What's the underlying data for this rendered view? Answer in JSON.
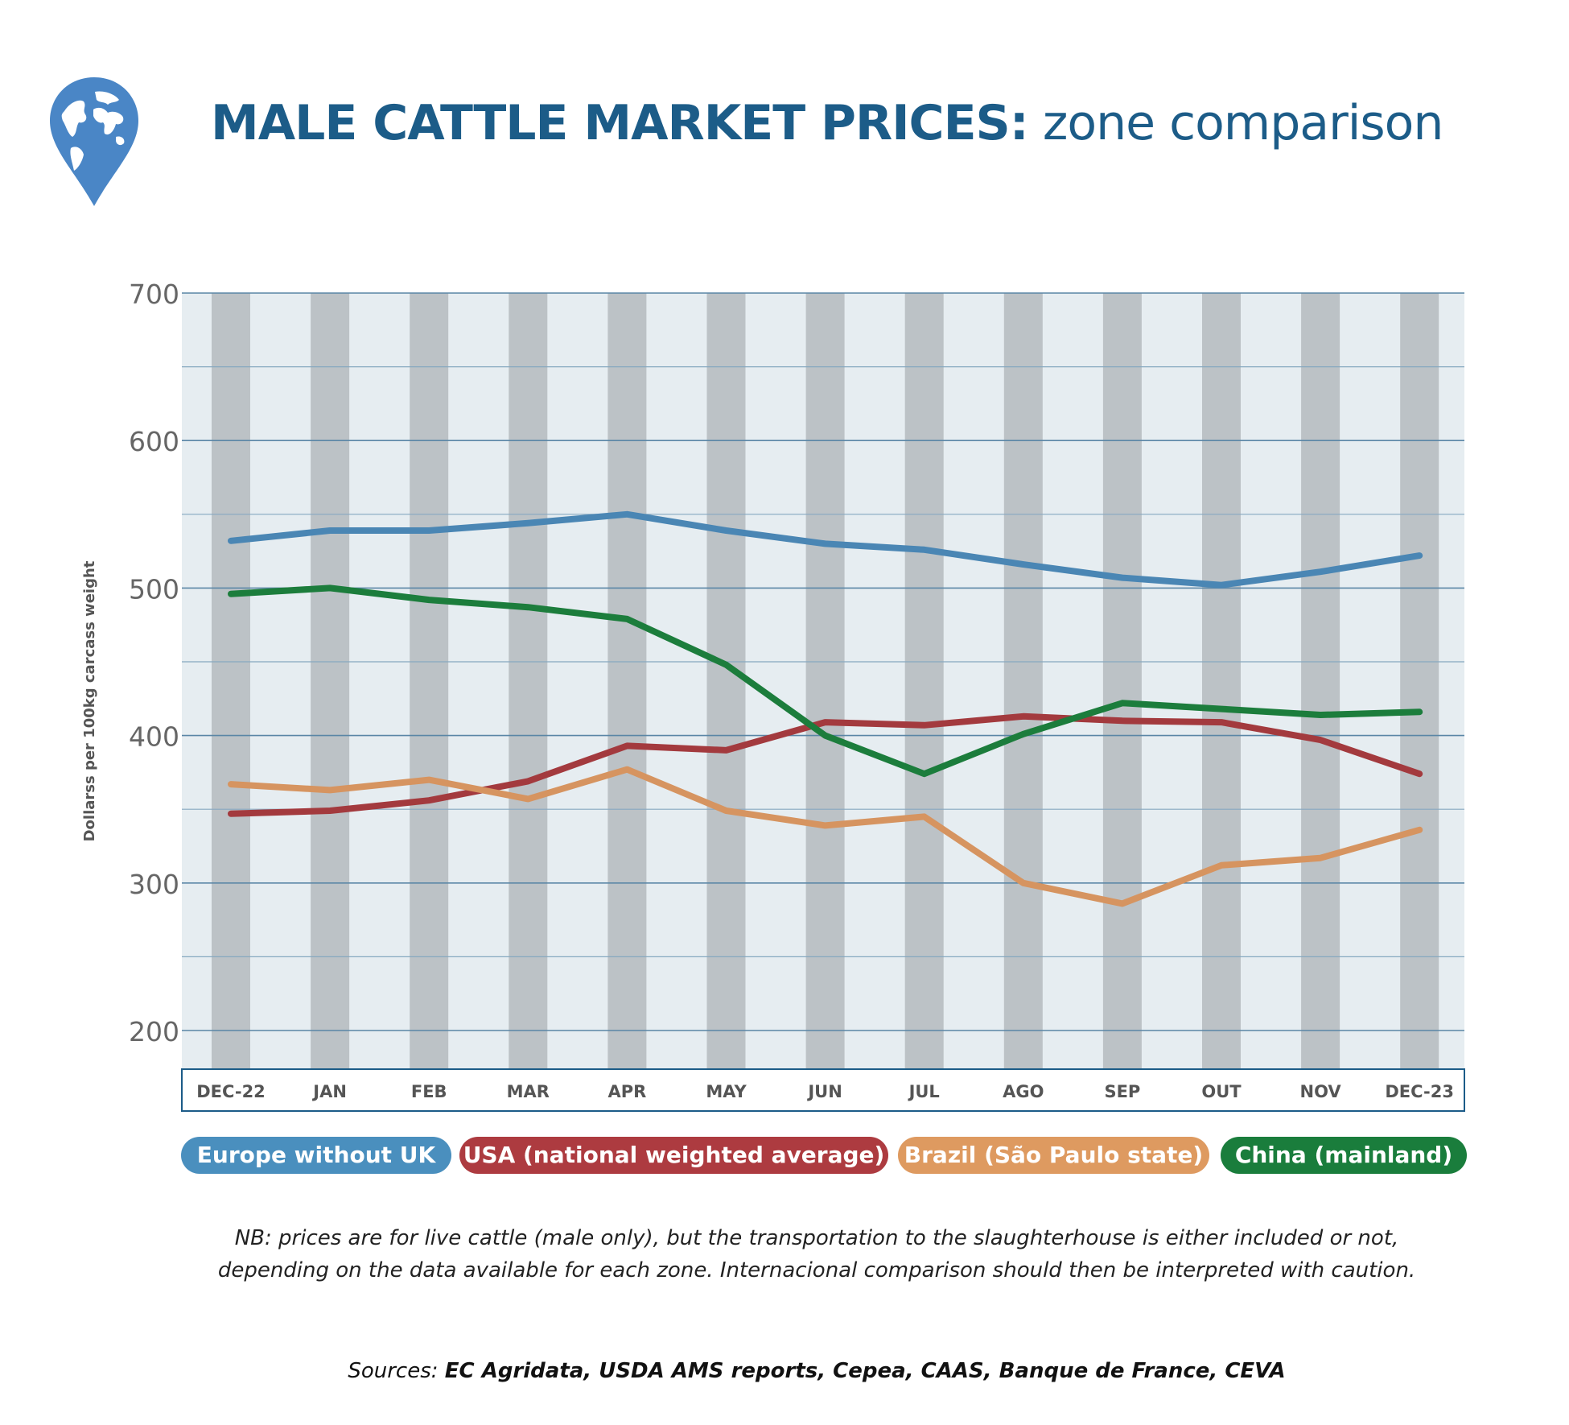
{
  "title": {
    "bold": "MALE CATTLE MARKET PRICES:",
    "light": "zone comparison"
  },
  "chart_data": {
    "type": "line",
    "ylabel": "Dollarss per 100kg carcass weight",
    "ylim": [
      170,
      700
    ],
    "yticks": [
      200,
      300,
      400,
      500,
      600,
      700
    ],
    "grid": true,
    "categories": [
      "DEC-22",
      "JAN",
      "FEB",
      "MAR",
      "APR",
      "MAY",
      "JUN",
      "JUL",
      "AGO",
      "SEP",
      "OUT",
      "NOV",
      "DEC-23"
    ],
    "series": [
      {
        "name": "Europe without UK",
        "color": "#4a86b4",
        "values": [
          532,
          539,
          539,
          544,
          550,
          539,
          530,
          526,
          516,
          507,
          502,
          511,
          522
        ]
      },
      {
        "name": "USA (national weighted average)",
        "color": "#a33a3e",
        "values": [
          347,
          349,
          356,
          369,
          393,
          390,
          409,
          407,
          413,
          410,
          409,
          397,
          374
        ]
      },
      {
        "name": "Brazil (São Paulo state)",
        "color": "#d69460",
        "values": [
          367,
          363,
          370,
          357,
          377,
          349,
          339,
          345,
          300,
          286,
          312,
          317,
          336
        ]
      },
      {
        "name": "China (mainland)",
        "color": "#1c7d3c",
        "values": [
          496,
          500,
          492,
          487,
          479,
          448,
          400,
          374,
          401,
          422,
          418,
          414,
          416
        ]
      }
    ]
  },
  "legend": [
    {
      "label": "Europe without UK",
      "color": "#4a8fbe"
    },
    {
      "label": "USA (national weighted average)",
      "color": "#ad3b40"
    },
    {
      "label": "Brazil (São Paulo state)",
      "color": "#de9a60"
    },
    {
      "label": "China (mainland)",
      "color": "#1a7d3c"
    }
  ],
  "note": {
    "line1": "NB: prices are for live cattle (male only), but the transportation to the slaughterhouse is either included or not,",
    "line2": "depending on the data available for each zone. Internacional comparison should then be interpreted with caution."
  },
  "sources": {
    "prefix": "Sources:",
    "list": "EC Agridata, USDA AMS reports, Cepea, CAAS, Banque de France, CEVA"
  }
}
